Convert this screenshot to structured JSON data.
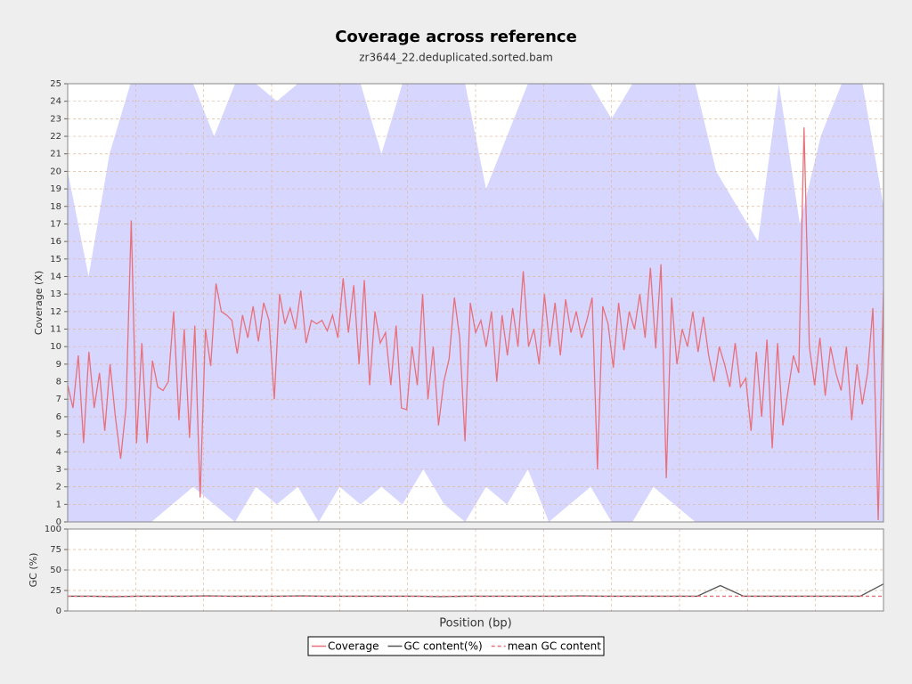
{
  "chart_data": [
    {
      "type": "line",
      "title": "Coverage across reference",
      "subtitle": "zr3644_22.deduplicated.sorted.bam",
      "y_label": "Coverage (X)",
      "ylim": [
        0,
        25
      ],
      "yticks": [
        0,
        1,
        2,
        3,
        4,
        5,
        6,
        7,
        8,
        9,
        10,
        11,
        12,
        13,
        14,
        15,
        16,
        17,
        18,
        19,
        20,
        21,
        22,
        23,
        24,
        25
      ],
      "grid": true,
      "band": {
        "color": "#d6d6ff",
        "upper": [
          20,
          14,
          21,
          25,
          25,
          25,
          25,
          22,
          25,
          25,
          24,
          25,
          25,
          25,
          25,
          21,
          25,
          25,
          25,
          25,
          19,
          22,
          25,
          25,
          25,
          25,
          23,
          25,
          25,
          25,
          25,
          20,
          18,
          16,
          25,
          17,
          22,
          25,
          25,
          18
        ],
        "lower": [
          0,
          0,
          0,
          0,
          0,
          1,
          2,
          1,
          0,
          2,
          1,
          2,
          0,
          2,
          1,
          2,
          1,
          3,
          1,
          0,
          2,
          1,
          3,
          0,
          1,
          2,
          0,
          0,
          2,
          1,
          0,
          0,
          0,
          0,
          0,
          0,
          0,
          0,
          0,
          0
        ]
      },
      "series": [
        {
          "name": "Coverage",
          "color": "#e8707a",
          "values": [
            7.8,
            6.5,
            9.5,
            4.5,
            9.7,
            6.5,
            8.5,
            5.2,
            9,
            6,
            3.6,
            6.5,
            17.2,
            4.5,
            10.2,
            4.5,
            9.2,
            7.7,
            7.5,
            8,
            12,
            5.8,
            11,
            4.8,
            11.2,
            1.4,
            11,
            8.9,
            13.6,
            12,
            11.8,
            11.5,
            9.6,
            11.8,
            10.5,
            12.3,
            10.3,
            12.5,
            11.5,
            7,
            13,
            11.3,
            12.2,
            11,
            13.2,
            10.2,
            11.5,
            11.3,
            11.5,
            10.9,
            11.8,
            10.5,
            13.9,
            10.8,
            13.5,
            9,
            13.8,
            7.8,
            12,
            10.2,
            10.8,
            7.8,
            11.2,
            6.5,
            6.4,
            10,
            7.8,
            13,
            7,
            10,
            5.5,
            8,
            9.3,
            12.8,
            10.5,
            4.6,
            12.5,
            10.8,
            11.5,
            10,
            12,
            8,
            11.8,
            9.5,
            12.2,
            10,
            14.3,
            10,
            11,
            9,
            13,
            10,
            12.5,
            9.5,
            12.7,
            10.8,
            12,
            10.5,
            11.5,
            12.8,
            3,
            12.3,
            11.3,
            8.8,
            12.5,
            9.8,
            12,
            11,
            13,
            10.5,
            14.5,
            9.9,
            14.7,
            2.5,
            12.8,
            9,
            11,
            10,
            12,
            9.7,
            11.7,
            9.5,
            8,
            10,
            9,
            7.7,
            10.2,
            7.7,
            8.2,
            5.2,
            9.7,
            6,
            10.4,
            4.2,
            10.2,
            5.5,
            7.5,
            9.5,
            8.5,
            22.5,
            10,
            7.8,
            10.5,
            7.2,
            10,
            8.5,
            7.5,
            10,
            5.8,
            9,
            6.7,
            8.5,
            12.2,
            0.1,
            13.2
          ]
        }
      ]
    },
    {
      "type": "line",
      "x_label": "Position (bp)",
      "y_label": "GC (%)",
      "ylim": [
        0,
        100
      ],
      "yticks": [
        0,
        25,
        50,
        75,
        100
      ],
      "grid": true,
      "series": [
        {
          "name": "GC content(%)",
          "color": "#555555",
          "values": [
            18,
            18,
            17.5,
            18,
            18,
            18,
            18.5,
            18,
            18,
            18,
            18.5,
            18,
            18,
            18,
            18,
            18,
            17.5,
            18,
            18,
            18,
            18,
            18,
            18.5,
            18,
            18,
            18,
            18,
            18,
            31,
            18,
            18,
            18,
            18,
            18,
            18,
            33
          ]
        },
        {
          "name": "mean GC content",
          "color": "#e8707a",
          "dashed": true,
          "values": [
            18,
            18,
            18,
            18,
            18,
            18,
            18,
            18,
            18,
            18,
            18,
            18,
            18,
            18,
            18,
            18,
            18,
            18,
            18,
            18,
            18,
            18,
            18,
            18,
            18,
            18,
            18,
            18,
            18,
            18,
            18,
            18,
            18,
            18,
            18,
            18
          ]
        }
      ]
    }
  ]
}
